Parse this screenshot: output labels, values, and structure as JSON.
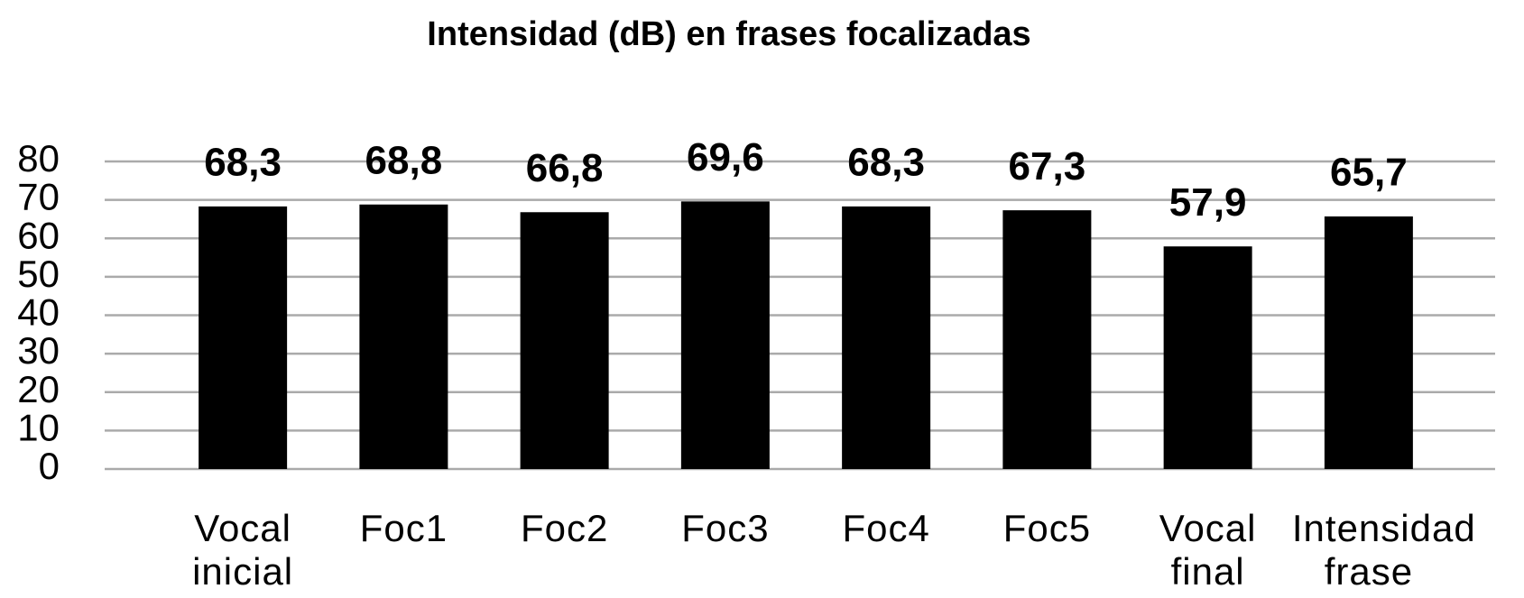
{
  "chart_data": {
    "type": "bar",
    "title": "Intensidad (dB) en frases focalizadas",
    "categories": [
      "Vocal inicial",
      "Foc1",
      "Foc2",
      "Foc3",
      "Foc4",
      "Foc5",
      "Vocal final",
      "Intensidad frase"
    ],
    "values": [
      68.3,
      68.8,
      66.8,
      69.6,
      68.3,
      67.3,
      57.9,
      65.7
    ],
    "value_labels": [
      "68,3",
      "68,8",
      "66,8",
      "69,6",
      "68,3",
      "67,3",
      "57,9",
      "65,7"
    ],
    "color": "#000000",
    "ylim": [
      0,
      80
    ],
    "yticks": [
      0,
      10,
      20,
      30,
      40,
      50,
      60,
      70,
      80
    ],
    "grid": true
  }
}
